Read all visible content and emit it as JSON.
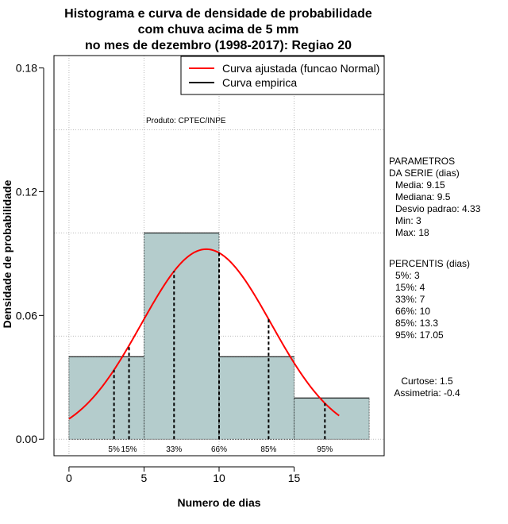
{
  "chart_data": {
    "type": "bar",
    "title_lines": [
      "Histograma e curva de densidade de probabilidade",
      "com chuva acima de 5 mm",
      "no mes de dezembro (1998-2017): Regiao 20"
    ],
    "xlabel": "Numero de dias",
    "ylabel": "Densidade de probabilidade",
    "xlim": [
      -1,
      21
    ],
    "ylim": [
      -0.008,
      0.186
    ],
    "xticks": [
      0,
      5,
      10,
      15
    ],
    "yticks": [
      0.0,
      0.06,
      0.12,
      0.18
    ],
    "ytick_labels": [
      "0.00",
      "0.06",
      "0.12",
      "0.18"
    ],
    "bins": [
      {
        "x0": 0,
        "x1": 5,
        "density": 0.04
      },
      {
        "x0": 5,
        "x1": 10,
        "density": 0.1
      },
      {
        "x0": 10,
        "x1": 15,
        "density": 0.04
      },
      {
        "x0": 15,
        "x1": 20,
        "density": 0.02
      }
    ],
    "bar_color": "#b4cccc",
    "grid": true,
    "normal_curve": {
      "name": "Curva ajustada (funcao Normal)",
      "mean": 9.15,
      "sd": 4.33,
      "x_range": [
        0,
        18
      ],
      "color": "#ff0000"
    },
    "empirical_curve": {
      "name": "Curva empirica",
      "color": "#000000"
    },
    "percentiles": [
      {
        "label": "5%",
        "x": 3
      },
      {
        "label": "15%",
        "x": 4
      },
      {
        "label": "33%",
        "x": 7
      },
      {
        "label": "66%",
        "x": 10
      },
      {
        "label": "85%",
        "x": 13.3
      },
      {
        "label": "95%",
        "x": 17.05
      }
    ],
    "legend_placement": "top-right",
    "annotation": "Produto: CPTEC/INPE",
    "parametros": {
      "header": [
        "PARAMETROS",
        "DA SERIE (dias)"
      ],
      "lines": [
        "Media: 9.15",
        "Mediana: 9.5",
        "Desvio padrao: 4.33",
        "Min: 3",
        "Max: 18"
      ]
    },
    "percentis": {
      "header": "PERCENTIS (dias)",
      "lines": [
        "5%: 3",
        "15%: 4",
        "33%: 7",
        "66%: 10",
        "85%: 13.3",
        "95%: 17.05"
      ]
    },
    "shape": {
      "lines": [
        "Curtose: 1.5",
        "Assimetria: -0.4"
      ]
    }
  }
}
